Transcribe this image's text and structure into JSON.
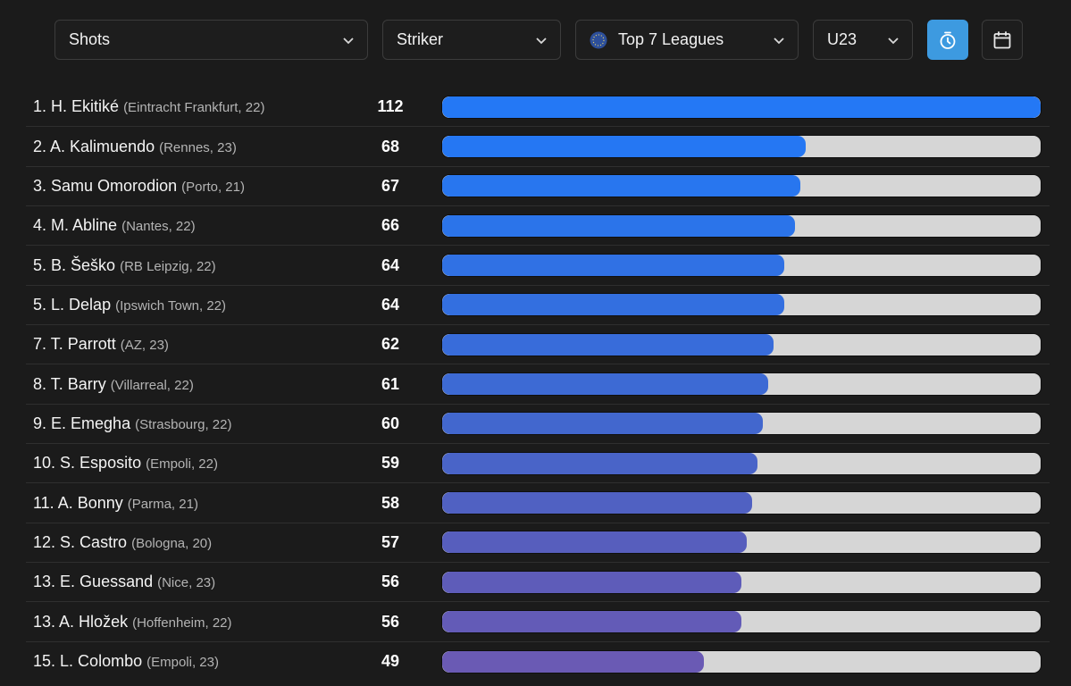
{
  "filters": {
    "stat": "Shots",
    "position": "Striker",
    "league": "Top 7 Leagues",
    "age": "U23"
  },
  "icons": {
    "stat_chevron": "chevron-down-icon",
    "league_logo": "globe-stars-icon",
    "per90_toggle": "stopwatch-icon",
    "season_picker": "calendar-icon"
  },
  "colors": {
    "accent": "#3d9ae0",
    "bar_track": "#d6d6d6",
    "bar_start": "#2478f5",
    "bar_end": "#6a5ab4"
  },
  "max_value": 112,
  "players": [
    {
      "rank": "1.",
      "name": "H. Ekitiké",
      "meta": "(Eintracht Frankfurt, 22)",
      "value": 112,
      "color": "#2478f5"
    },
    {
      "rank": "2.",
      "name": "A. Kalimuendo",
      "meta": "(Rennes, 23)",
      "value": 68,
      "color": "#2577f3"
    },
    {
      "rank": "3.",
      "name": "Samu Omorodion",
      "meta": "(Porto, 21)",
      "value": 67,
      "color": "#2876ef"
    },
    {
      "rank": "4.",
      "name": "M. Abline",
      "meta": "(Nantes, 22)",
      "value": 66,
      "color": "#2b74ea"
    },
    {
      "rank": "5.",
      "name": "B. Šeško",
      "meta": "(RB Leipzig, 22)",
      "value": 64,
      "color": "#3071e4"
    },
    {
      "rank": "5.",
      "name": "L. Delap",
      "meta": "(Ipswich Town, 22)",
      "value": 64,
      "color": "#336fe0"
    },
    {
      "rank": "7.",
      "name": "T. Parrott",
      "meta": "(AZ, 23)",
      "value": 62,
      "color": "#386cda"
    },
    {
      "rank": "8.",
      "name": "T. Barry",
      "meta": "(Villarreal, 22)",
      "value": 61,
      "color": "#3d6ad4"
    },
    {
      "rank": "9.",
      "name": "E. Emegha",
      "meta": "(Strasbourg, 22)",
      "value": 60,
      "color": "#4267ce"
    },
    {
      "rank": "10.",
      "name": "S. Esposito",
      "meta": "(Empoli, 22)",
      "value": 59,
      "color": "#4964c8"
    },
    {
      "rank": "11.",
      "name": "A. Bonny",
      "meta": "(Parma, 21)",
      "value": 58,
      "color": "#5061c2"
    },
    {
      "rank": "12.",
      "name": "S. Castro",
      "meta": "(Bologna, 20)",
      "value": 57,
      "color": "#575ebd"
    },
    {
      "rank": "13.",
      "name": "E. Guessand",
      "meta": "(Nice, 23)",
      "value": 56,
      "color": "#5e5cb9"
    },
    {
      "rank": "13.",
      "name": "A. Hložek",
      "meta": "(Hoffenheim, 22)",
      "value": 56,
      "color": "#635bb7"
    },
    {
      "rank": "15.",
      "name": "L. Colombo",
      "meta": "(Empoli, 23)",
      "value": 49,
      "color": "#6a5ab4"
    }
  ]
}
